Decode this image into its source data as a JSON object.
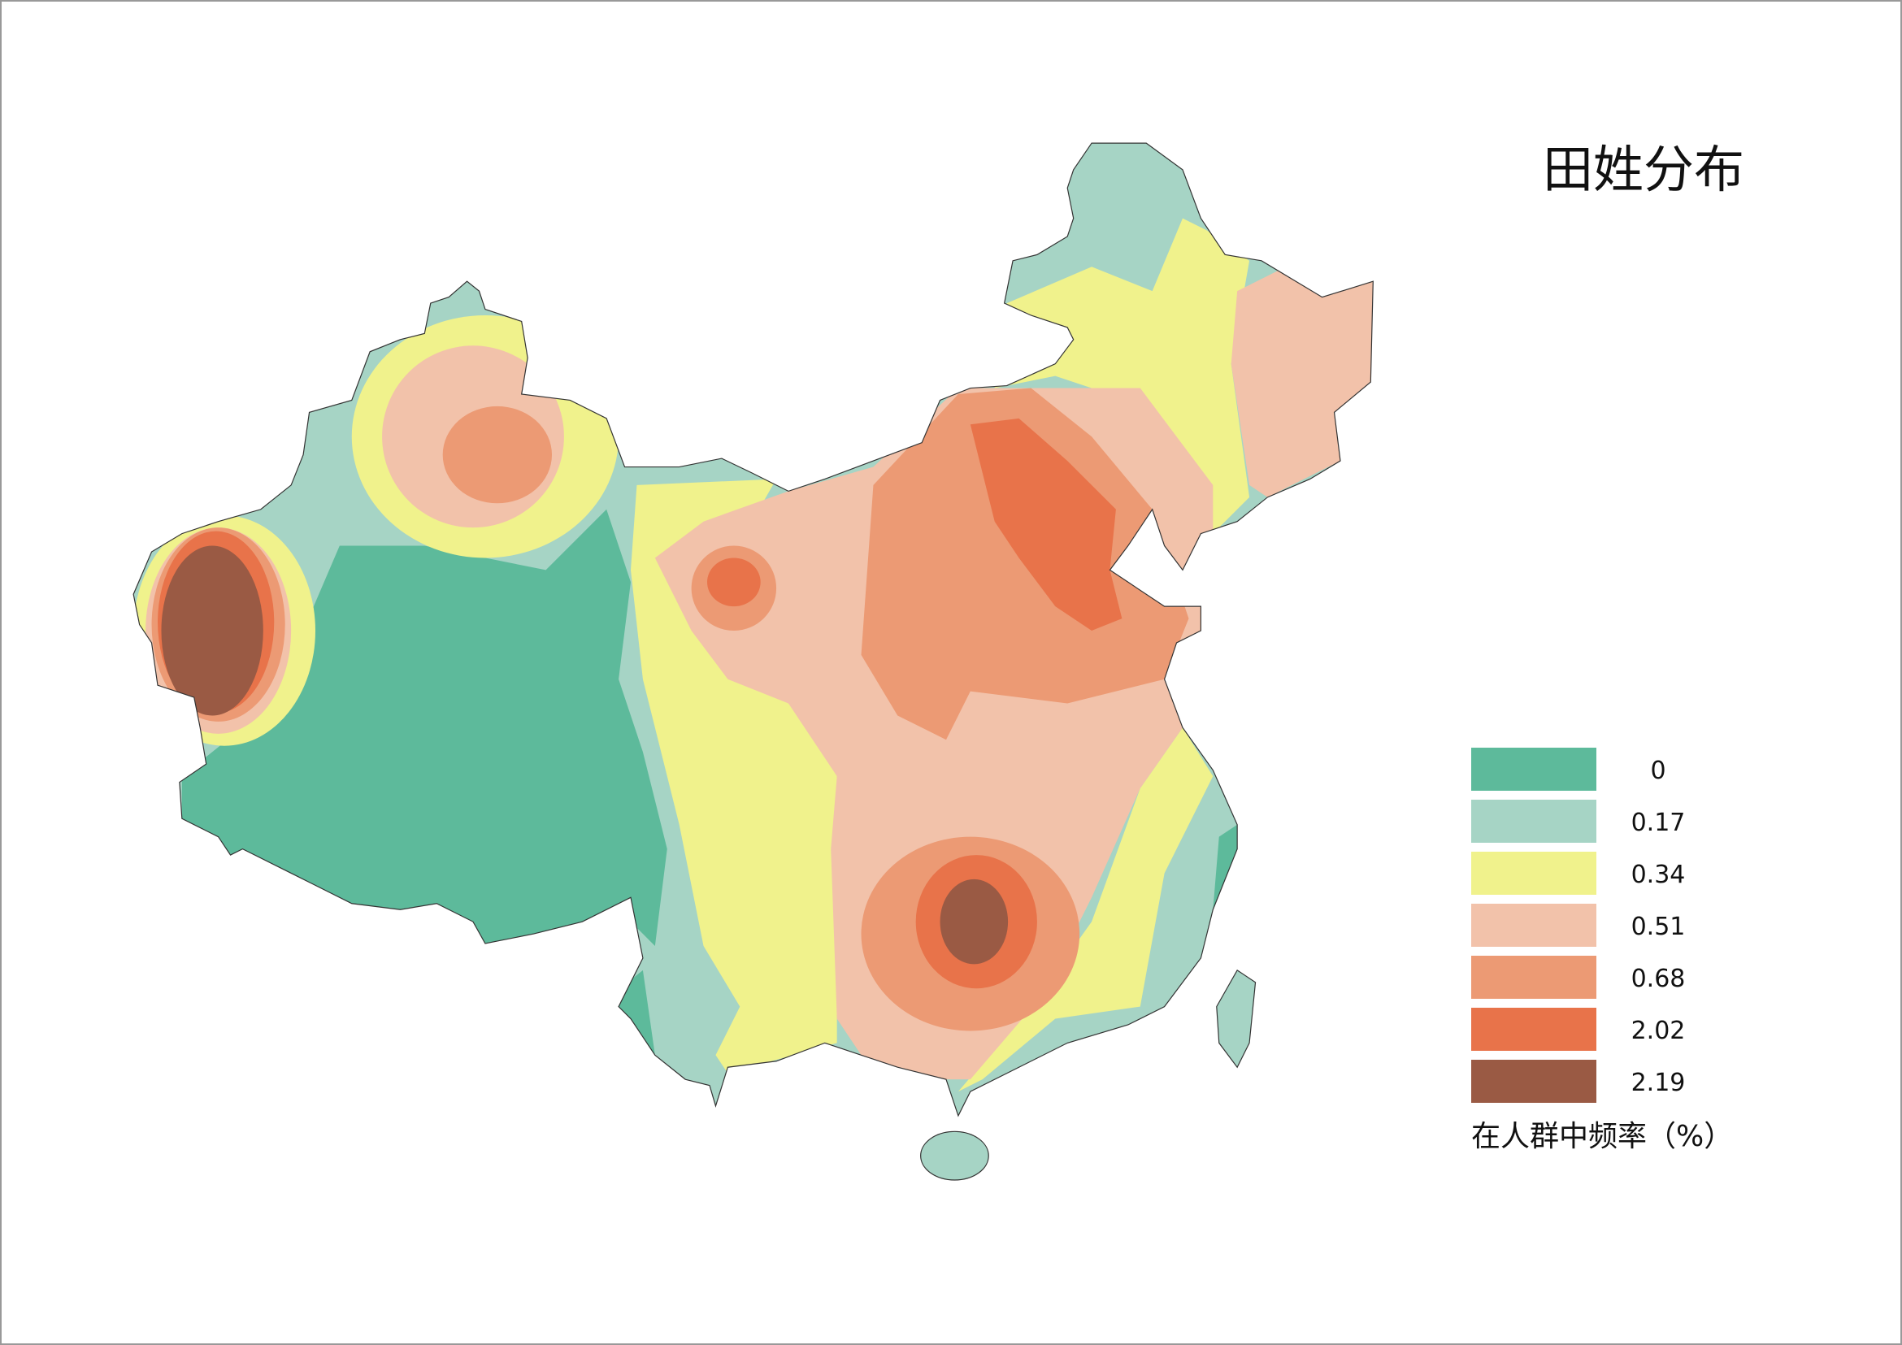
{
  "title": "田姓分布",
  "legend": {
    "caption": "在人群中频率（%）",
    "items": [
      {
        "value": 0,
        "color": "#5dba9b"
      },
      {
        "value": 0.17,
        "color": "#a6d4c5"
      },
      {
        "value": 0.34,
        "color": "#f0f28c"
      },
      {
        "value": 0.51,
        "color": "#f2c2aa"
      },
      {
        "value": 0.68,
        "color": "#ec9a74"
      },
      {
        "value": 2.02,
        "color": "#e8734a"
      },
      {
        "value": 2.19,
        "color": "#9a5a44"
      }
    ]
  }
}
